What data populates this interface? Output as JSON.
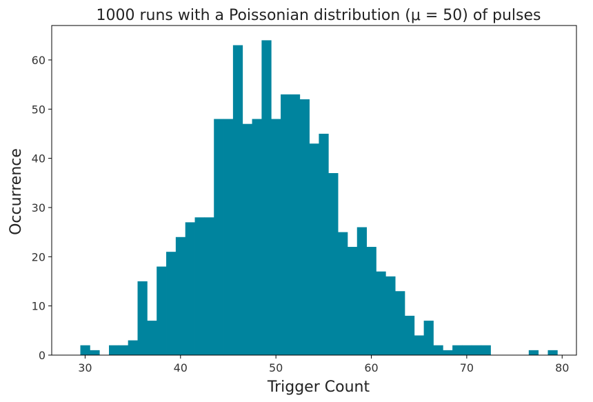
{
  "chart_data": {
    "type": "bar",
    "title": "1000 runs with a Poissonian distribution (μ = 50) of pulses",
    "xlabel": "Trigger Count",
    "ylabel": "Occurrence",
    "xlim": [
      26.5,
      81.5
    ],
    "ylim": [
      0,
      67
    ],
    "xticks": [
      30,
      40,
      50,
      60,
      70,
      80
    ],
    "yticks": [
      0,
      10,
      20,
      30,
      40,
      50,
      60
    ],
    "grid": false,
    "color": "#00849E",
    "bins": {
      "x": [
        30,
        31,
        32,
        33,
        34,
        35,
        36,
        37,
        38,
        39,
        40,
        41,
        42,
        43,
        44,
        45,
        46,
        47,
        48,
        49,
        50,
        51,
        52,
        53,
        54,
        55,
        56,
        57,
        58,
        59,
        60,
        61,
        62,
        63,
        64,
        65,
        66,
        67,
        68,
        69,
        70,
        71,
        72,
        73,
        74,
        75,
        76,
        77,
        78,
        79,
        80
      ],
      "values": [
        2,
        1,
        0,
        2,
        2,
        3,
        15,
        7,
        18,
        21,
        24,
        27,
        28,
        28,
        48,
        48,
        63,
        47,
        48,
        64,
        48,
        53,
        53,
        52,
        43,
        45,
        37,
        25,
        22,
        26,
        22,
        17,
        16,
        13,
        8,
        4,
        7,
        2,
        1,
        2,
        2,
        2,
        2,
        0,
        0,
        0,
        0,
        1,
        0,
        1,
        0
      ]
    }
  }
}
